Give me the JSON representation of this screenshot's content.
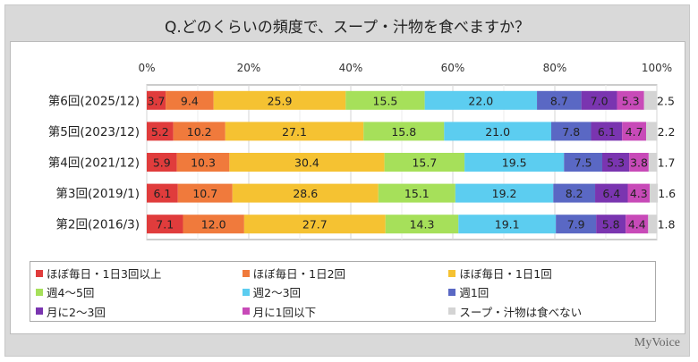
{
  "chart_data": {
    "type": "bar",
    "orientation": "horizontal-stacked-100",
    "title": "Q.どのくらいの頻度で、スープ・汁物を食べますか？",
    "categories": [
      "第6回(2025/12)",
      "第5回(2023/12)",
      "第4回(2021/12)",
      "第3回(2019/1)",
      "第2回(2016/3)"
    ],
    "xlim": [
      0,
      100
    ],
    "xticks": [
      "0%",
      "20%",
      "40%",
      "60%",
      "80%",
      "100%"
    ],
    "grid": true,
    "legend_position": "bottom",
    "series": [
      {
        "name": "ほぼ毎日・1日3回以上",
        "color": "#e03c3c",
        "values": [
          3.7,
          5.2,
          5.9,
          6.1,
          7.1
        ]
      },
      {
        "name": "ほぼ毎日・1日2回",
        "color": "#f07a3c",
        "values": [
          9.4,
          10.2,
          10.3,
          10.7,
          12.0
        ]
      },
      {
        "name": "ほぼ毎日・1日1回",
        "color": "#f5c232",
        "values": [
          25.9,
          27.1,
          30.4,
          28.6,
          27.7
        ]
      },
      {
        "name": "週4～5回",
        "color": "#a6e05a",
        "values": [
          15.5,
          15.8,
          15.7,
          15.1,
          14.3
        ]
      },
      {
        "name": "週2～3回",
        "color": "#5ccdf0",
        "values": [
          22.0,
          21.0,
          19.5,
          19.2,
          19.1
        ]
      },
      {
        "name": "週1回",
        "color": "#5a68c4",
        "values": [
          8.7,
          7.8,
          7.5,
          8.2,
          7.9
        ]
      },
      {
        "name": "月に2～3回",
        "color": "#7a35b0",
        "values": [
          7.0,
          6.1,
          5.3,
          6.4,
          5.8
        ]
      },
      {
        "name": "月に1回以下",
        "color": "#c84ab8",
        "values": [
          5.3,
          4.7,
          3.8,
          4.3,
          4.4
        ]
      },
      {
        "name": "スープ・汁物は食べない",
        "color": "#d4d4d4",
        "values": [
          2.5,
          2.2,
          1.7,
          1.6,
          1.8
        ]
      }
    ]
  },
  "logo": "MyVoice"
}
